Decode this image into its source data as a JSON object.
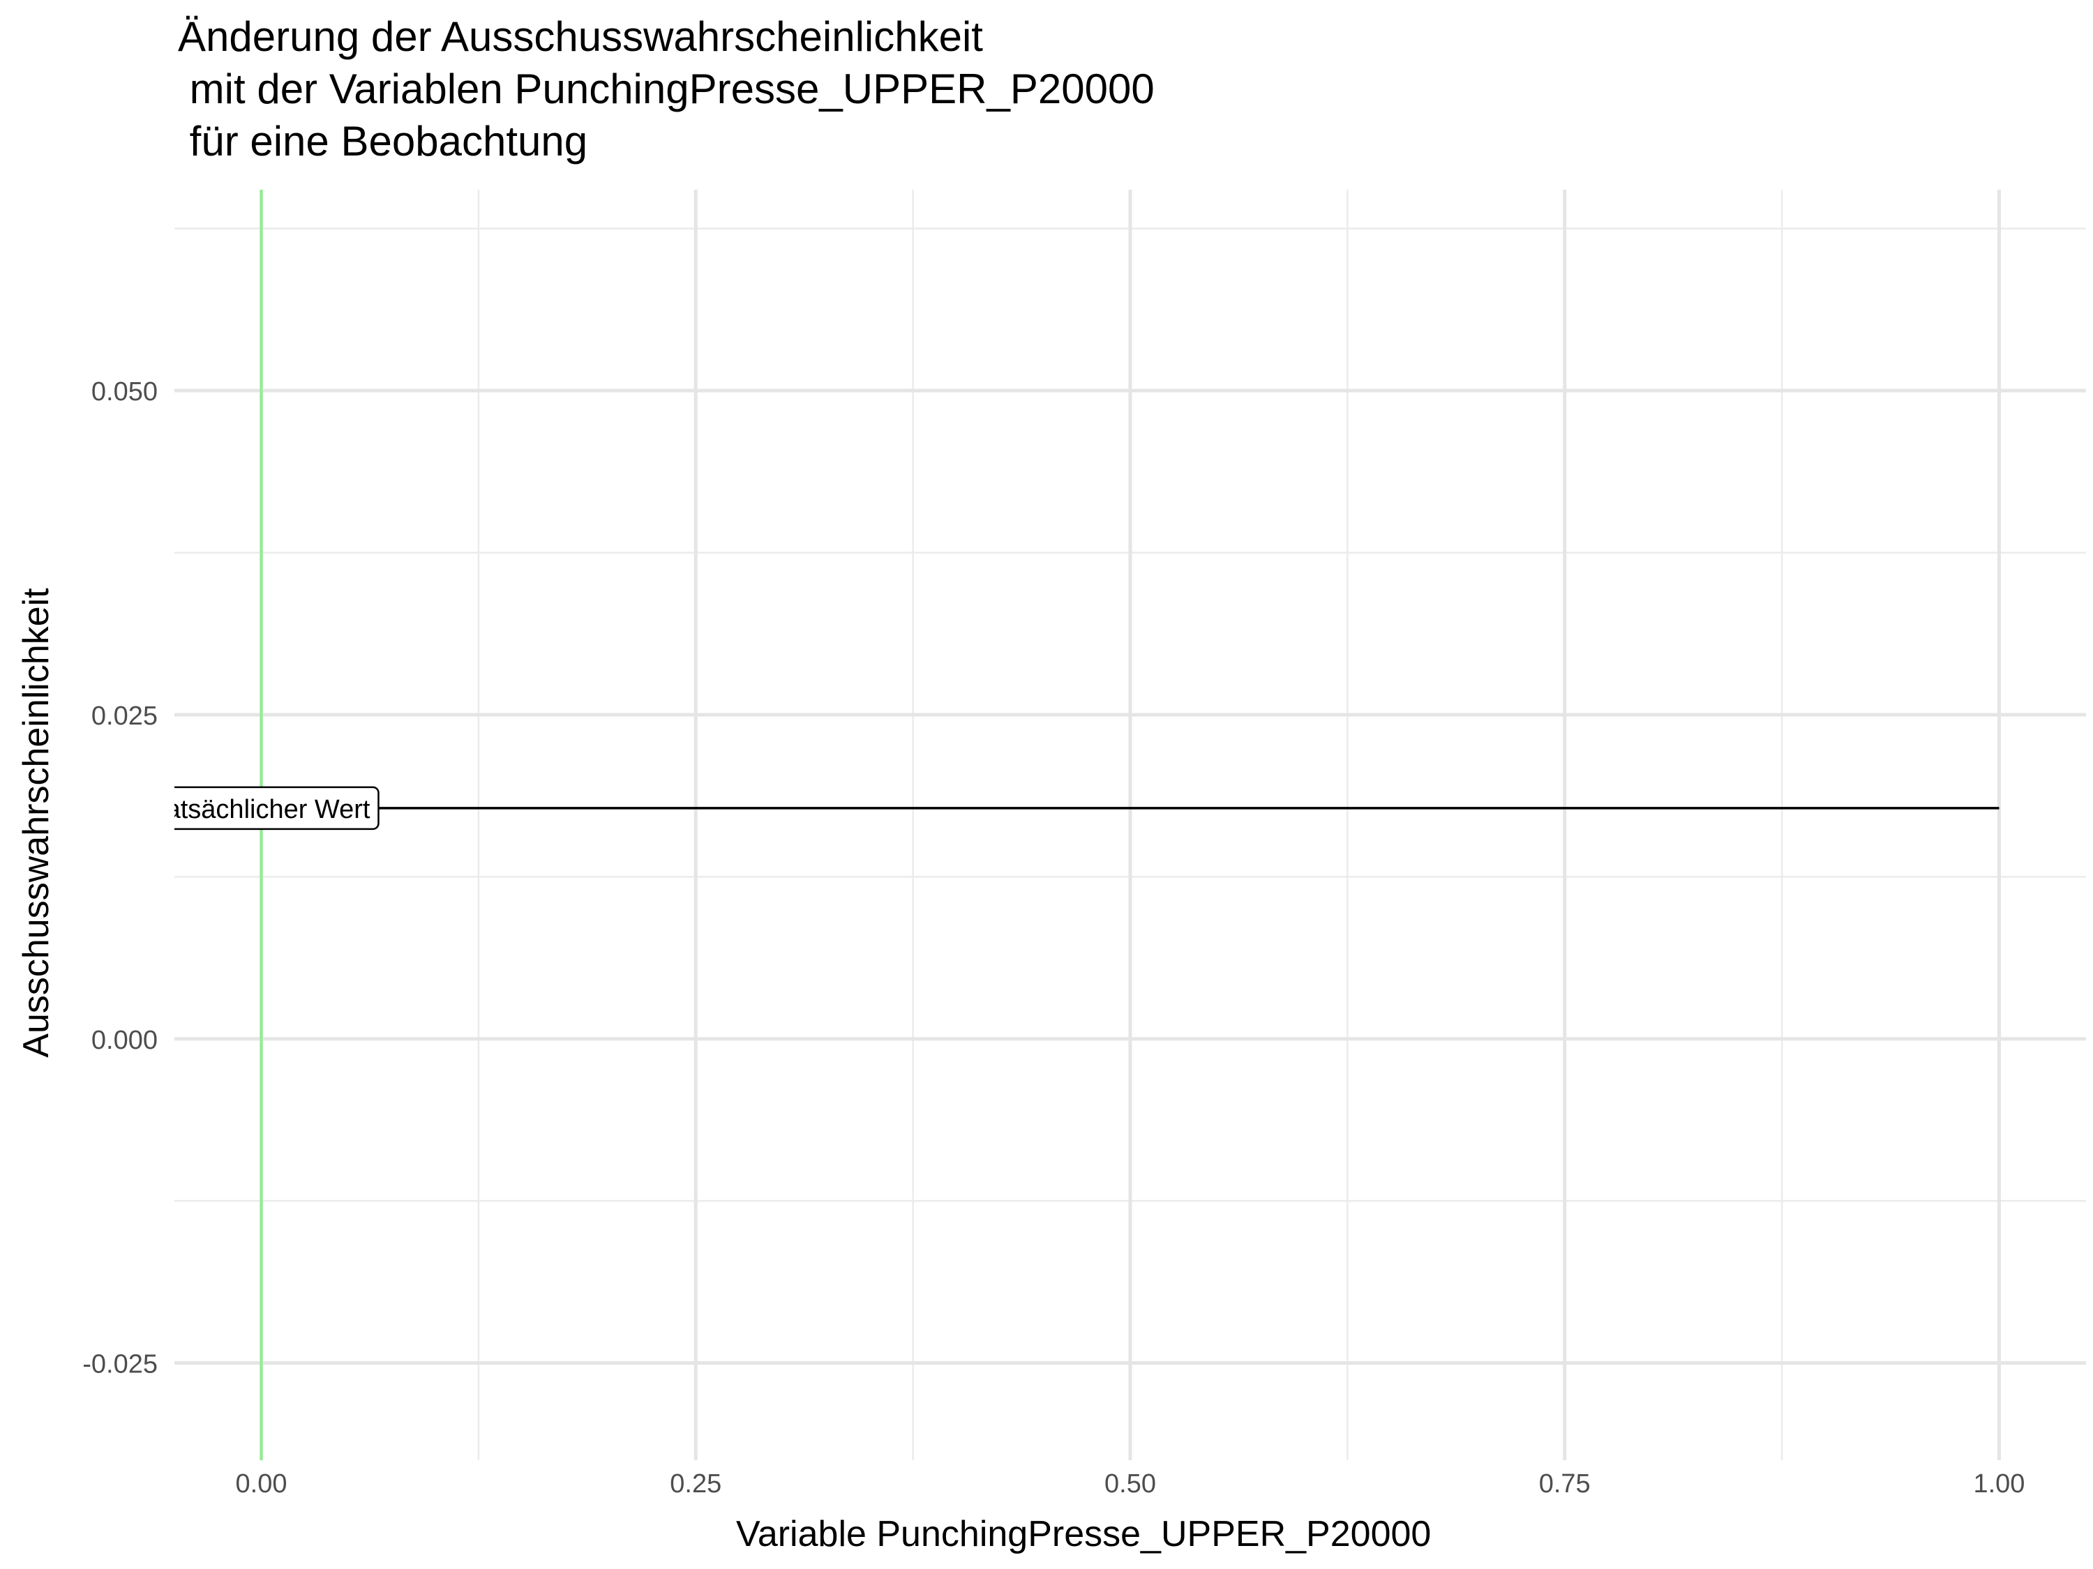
{
  "chart_data": {
    "type": "line",
    "title_lines": [
      "Änderung der Ausschusswahrscheinlichkeit",
      " mit der Variablen PunchingPresse_UPPER_P20000",
      " für eine Beobachtung"
    ],
    "xlabel": "Variable PunchingPresse_UPPER_P20000",
    "ylabel": "Ausschusswahrscheinlichkeit",
    "xlim": [
      -0.05,
      1.05
    ],
    "ylim": [
      -0.0325,
      0.0655
    ],
    "x_ticks": [
      {
        "value": 0.0,
        "label": "0.00"
      },
      {
        "value": 0.25,
        "label": "0.25"
      },
      {
        "value": 0.5,
        "label": "0.50"
      },
      {
        "value": 0.75,
        "label": "0.75"
      },
      {
        "value": 1.0,
        "label": "1.00"
      }
    ],
    "y_ticks": [
      {
        "value": -0.025,
        "label": "-0.025"
      },
      {
        "value": 0.0,
        "label": "0.000"
      },
      {
        "value": 0.025,
        "label": "0.025"
      },
      {
        "value": 0.05,
        "label": "0.050"
      }
    ],
    "series": [
      {
        "x": [
          0.0,
          1.0
        ],
        "y": [
          0.0178,
          0.0178
        ],
        "color": "#000000"
      }
    ],
    "vline": {
      "x": 0.0,
      "color": "#90ee90"
    },
    "annotation": {
      "text": "Tatsächlicher Wert",
      "x": 0.0,
      "y": 0.0178
    },
    "grid": true
  }
}
